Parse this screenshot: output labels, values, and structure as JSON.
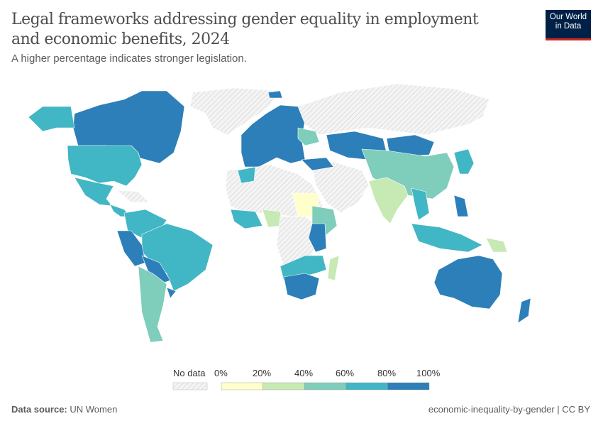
{
  "header": {
    "title": "Legal frameworks addressing gender equality in employment and economic benefits, 2024",
    "subtitle": "A higher percentage indicates stronger legislation.",
    "logo_line1": "Our World",
    "logo_line2": "in Data"
  },
  "legend": {
    "no_data_label": "No data",
    "ticks": [
      "0%",
      "20%",
      "40%",
      "60%",
      "80%",
      "100%"
    ],
    "bins": [
      {
        "range": "0-20%",
        "color": "#ffffcc"
      },
      {
        "range": "20-40%",
        "color": "#c7e9b4"
      },
      {
        "range": "40-60%",
        "color": "#7fcdbb"
      },
      {
        "range": "60-80%",
        "color": "#41b6c4"
      },
      {
        "range": "80-100%",
        "color": "#2c7fb8"
      }
    ],
    "no_data_color": "#e8e8e8"
  },
  "footer": {
    "source_label": "Data source:",
    "source": "UN Women",
    "slug": "economic-inequality-by-gender | CC BY"
  }
}
